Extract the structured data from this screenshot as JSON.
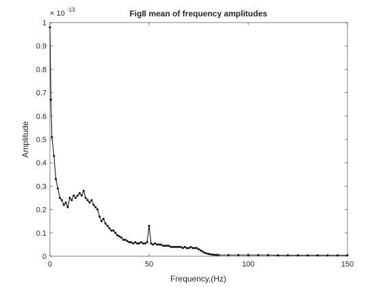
{
  "chart_data": {
    "type": "line",
    "title": "Fig8 mean of frequency amplitudes",
    "x_label": "Frequency,(Hz)",
    "y_label": "Amplitude",
    "y_multiplier": "× 10",
    "y_exponent": "-13",
    "x": [
      0,
      0.5,
      1,
      2,
      3,
      4,
      5,
      6,
      7,
      8,
      9,
      10,
      11,
      12,
      13,
      14,
      15,
      16,
      17,
      18,
      19,
      20,
      21,
      22,
      23,
      24,
      25,
      26,
      27,
      28,
      29,
      30,
      31,
      32,
      33,
      34,
      35,
      36,
      37,
      38,
      39,
      40,
      41,
      42,
      43,
      44,
      45,
      46,
      47,
      48,
      49,
      50,
      51,
      52,
      53,
      54,
      55,
      56,
      57,
      58,
      59,
      60,
      61,
      62,
      63,
      64,
      65,
      66,
      67,
      68,
      69,
      70,
      71,
      72,
      73,
      74,
      75,
      76,
      77,
      78,
      79,
      80,
      81,
      82,
      83,
      84,
      85,
      90,
      95,
      100,
      105,
      110,
      115,
      120,
      125,
      130,
      135,
      140,
      145,
      150
    ],
    "series": [
      {
        "name": "mean amplitude",
        "color": "#000000",
        "values": [
          0.98,
          0.67,
          0.51,
          0.43,
          0.33,
          0.29,
          0.25,
          0.24,
          0.22,
          0.23,
          0.21,
          0.25,
          0.24,
          0.26,
          0.25,
          0.26,
          0.27,
          0.26,
          0.28,
          0.25,
          0.24,
          0.23,
          0.24,
          0.22,
          0.21,
          0.2,
          0.17,
          0.15,
          0.16,
          0.14,
          0.13,
          0.12,
          0.11,
          0.11,
          0.1,
          0.09,
          0.085,
          0.08,
          0.07,
          0.07,
          0.065,
          0.06,
          0.06,
          0.055,
          0.06,
          0.055,
          0.055,
          0.06,
          0.055,
          0.055,
          0.06,
          0.13,
          0.055,
          0.05,
          0.055,
          0.05,
          0.05,
          0.05,
          0.045,
          0.045,
          0.045,
          0.045,
          0.04,
          0.04,
          0.04,
          0.04,
          0.04,
          0.04,
          0.035,
          0.04,
          0.035,
          0.035,
          0.04,
          0.035,
          0.035,
          0.035,
          0.03,
          0.025,
          0.02,
          0.015,
          0.012,
          0.01,
          0.008,
          0.007,
          0.006,
          0.006,
          0.005,
          0.005,
          0.005,
          0.005,
          0.005,
          0.005,
          0.004,
          0.004,
          0.004,
          0.004,
          0.004,
          0.004,
          0.004,
          0.004
        ]
      }
    ],
    "xlim": [
      0,
      150
    ],
    "xticks": [
      0,
      50,
      100,
      150
    ],
    "ylim": [
      0,
      1
    ],
    "yticks": [
      0,
      0.1,
      0.2,
      0.3,
      0.4,
      0.5,
      0.6,
      0.7,
      0.8,
      0.9,
      1
    ],
    "grid": false
  }
}
